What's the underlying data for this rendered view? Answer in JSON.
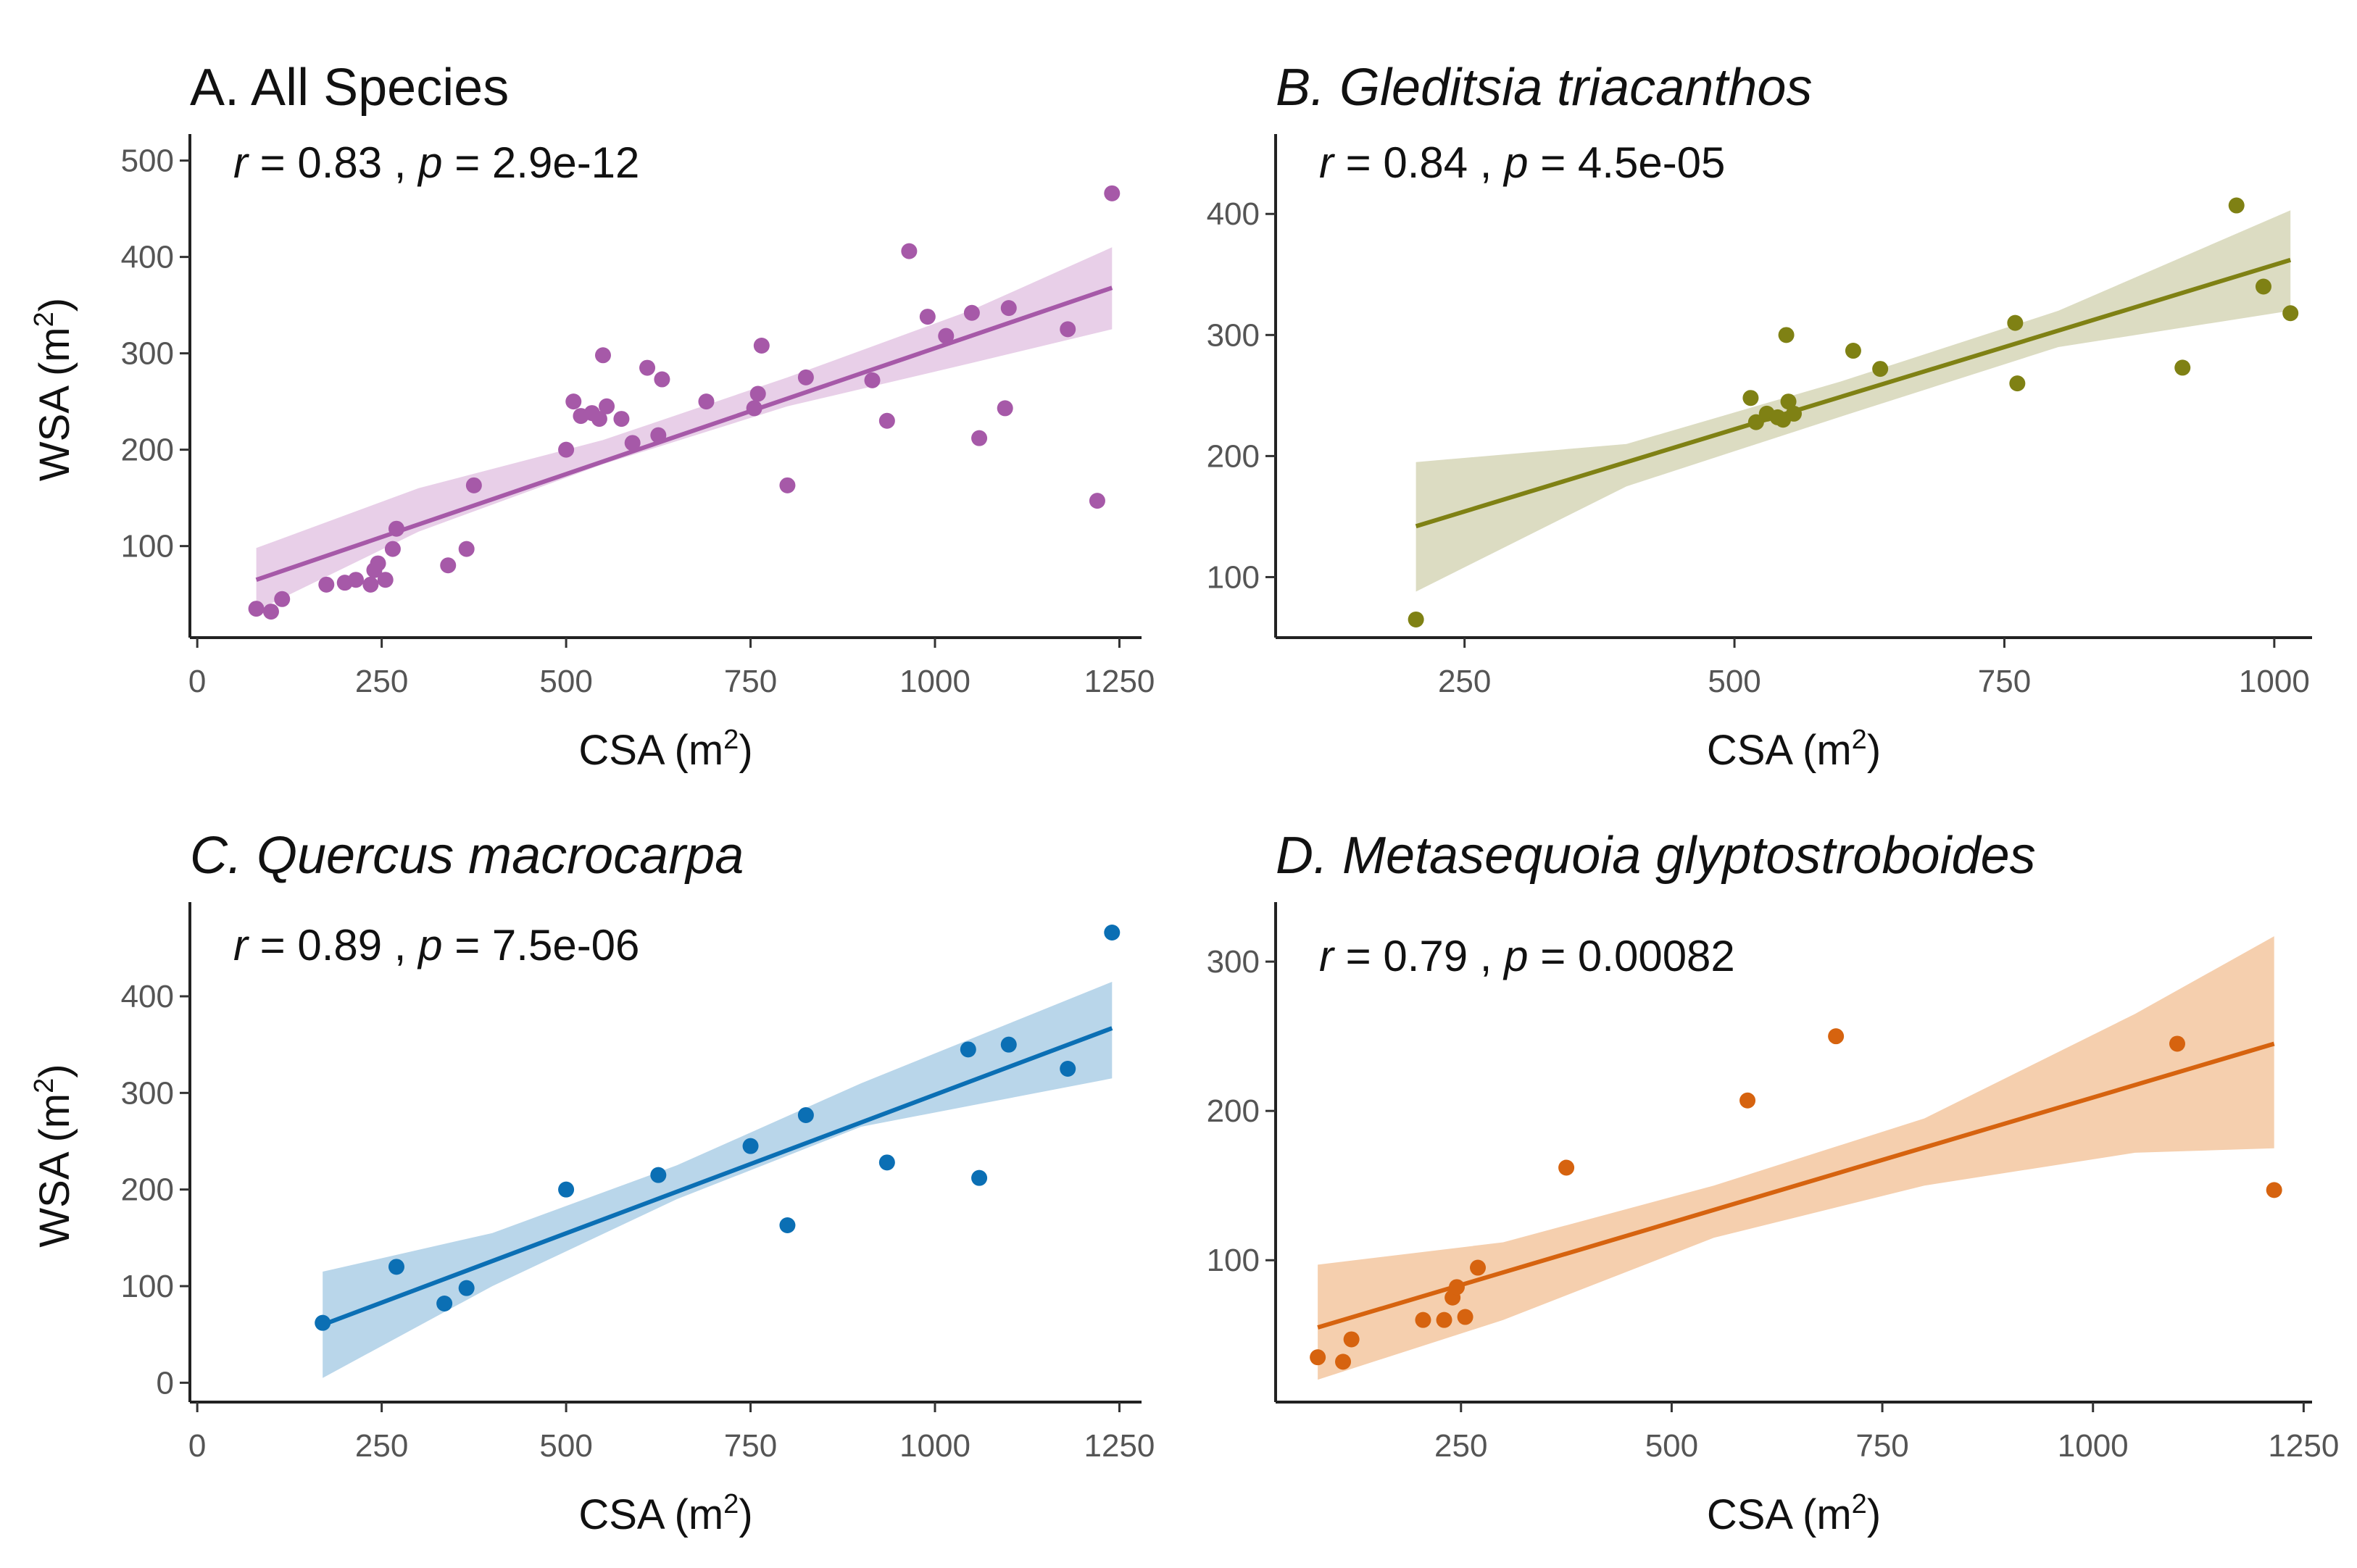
{
  "chart_data": [
    {
      "type": "scatter",
      "panel": "A",
      "title": "A. All Species",
      "title_italic": false,
      "stats": {
        "r_label": "r",
        "r": "0.83",
        "p_label": "p",
        "p": "2.9e-12"
      },
      "xlabel": "CSA (m",
      "xlabel_sup": "2",
      "xlabel_close": ")",
      "ylabel": "WSA (m",
      "ylabel_sup": "2",
      "ylabel_close": ")",
      "xlim": [
        -10,
        1280
      ],
      "ylim": [
        5,
        520
      ],
      "xticks": [
        0,
        250,
        500,
        750,
        1000,
        1250
      ],
      "yticks": [
        100,
        200,
        300,
        400,
        500
      ],
      "color": "#a659a8",
      "band_color": "#e8cfe8",
      "fit": {
        "x": [
          80,
          1240
        ],
        "y": [
          65,
          368
        ]
      },
      "band": {
        "x": [
          80,
          300,
          550,
          800,
          1050,
          1240
        ],
        "lower": [
          33,
          115,
          185,
          245,
          290,
          325
        ],
        "upper": [
          98,
          160,
          210,
          275,
          345,
          410
        ]
      },
      "points": [
        [
          80,
          35
        ],
        [
          100,
          32
        ],
        [
          115,
          45
        ],
        [
          175,
          60
        ],
        [
          200,
          62
        ],
        [
          215,
          65
        ],
        [
          235,
          60
        ],
        [
          240,
          75
        ],
        [
          245,
          82
        ],
        [
          255,
          65
        ],
        [
          265,
          97
        ],
        [
          270,
          118
        ],
        [
          340,
          80
        ],
        [
          365,
          97
        ],
        [
          375,
          163
        ],
        [
          500,
          200
        ],
        [
          510,
          250
        ],
        [
          520,
          235
        ],
        [
          535,
          238
        ],
        [
          545,
          232
        ],
        [
          550,
          298
        ],
        [
          555,
          245
        ],
        [
          575,
          232
        ],
        [
          590,
          207
        ],
        [
          610,
          285
        ],
        [
          625,
          215
        ],
        [
          630,
          273
        ],
        [
          690,
          250
        ],
        [
          755,
          243
        ],
        [
          760,
          258
        ],
        [
          765,
          308
        ],
        [
          800,
          163
        ],
        [
          825,
          275
        ],
        [
          915,
          272
        ],
        [
          935,
          230
        ],
        [
          965,
          406
        ],
        [
          990,
          338
        ],
        [
          1015,
          318
        ],
        [
          1050,
          342
        ],
        [
          1060,
          212
        ],
        [
          1095,
          243
        ],
        [
          1100,
          347
        ],
        [
          1180,
          325
        ],
        [
          1220,
          147
        ],
        [
          1240,
          466
        ]
      ]
    },
    {
      "type": "scatter",
      "panel": "B",
      "title": "B. Gleditsia triacanthos",
      "title_italic": true,
      "stats": {
        "r_label": "r",
        "r": "0.84",
        "p_label": "p",
        "p": "4.5e-05"
      },
      "xlabel": "CSA (m",
      "xlabel_sup": "2",
      "xlabel_close": ")",
      "ylabel": "",
      "ylabel_sup": "",
      "ylabel_close": "",
      "xlim": [
        75,
        1035
      ],
      "ylim": [
        50,
        460
      ],
      "xticks": [
        250,
        500,
        750,
        1000
      ],
      "yticks": [
        100,
        200,
        300,
        400
      ],
      "color": "#7f8114",
      "band_color": "#dcdcc2",
      "fit": {
        "x": [
          205,
          1015
        ],
        "y": [
          142,
          362
        ]
      },
      "band": {
        "x": [
          205,
          400,
          600,
          800,
          1015
        ],
        "lower": [
          88,
          175,
          233,
          290,
          320
        ],
        "upper": [
          195,
          210,
          262,
          320,
          403
        ]
      },
      "points": [
        [
          205,
          65
        ],
        [
          515,
          248
        ],
        [
          520,
          228
        ],
        [
          530,
          235
        ],
        [
          540,
          232
        ],
        [
          545,
          230
        ],
        [
          548,
          300
        ],
        [
          550,
          245
        ],
        [
          555,
          235
        ],
        [
          610,
          287
        ],
        [
          635,
          272
        ],
        [
          760,
          310
        ],
        [
          762,
          260
        ],
        [
          915,
          273
        ],
        [
          965,
          407
        ],
        [
          990,
          340
        ],
        [
          1015,
          318
        ]
      ]
    },
    {
      "type": "scatter",
      "panel": "C",
      "title": "C. Quercus macrocarpa",
      "title_italic": true,
      "stats": {
        "r_label": "r",
        "r": "0.89",
        "p_label": "p",
        "p": "7.5e-06"
      },
      "xlabel": "CSA (m",
      "xlabel_sup": "2",
      "xlabel_close": ")",
      "ylabel": "WSA (m",
      "ylabel_sup": "2",
      "ylabel_close": ")",
      "xlim": [
        -10,
        1280
      ],
      "ylim": [
        -20,
        490
      ],
      "xticks": [
        0,
        250,
        500,
        750,
        1000,
        1250
      ],
      "yticks": [
        0,
        100,
        200,
        300,
        400
      ],
      "color": "#0b6fb4",
      "band_color": "#b9d6ea",
      "fit": {
        "x": [
          170,
          1240
        ],
        "y": [
          60,
          367
        ]
      },
      "band": {
        "x": [
          170,
          400,
          650,
          900,
          1240
        ],
        "lower": [
          5,
          100,
          190,
          265,
          315
        ],
        "upper": [
          115,
          155,
          225,
          310,
          415
        ]
      },
      "points": [
        [
          170,
          62
        ],
        [
          270,
          120
        ],
        [
          335,
          82
        ],
        [
          365,
          98
        ],
        [
          500,
          200
        ],
        [
          625,
          215
        ],
        [
          750,
          245
        ],
        [
          800,
          163
        ],
        [
          825,
          277
        ],
        [
          935,
          228
        ],
        [
          1045,
          345
        ],
        [
          1060,
          212
        ],
        [
          1100,
          350
        ],
        [
          1180,
          325
        ],
        [
          1240,
          466
        ]
      ]
    },
    {
      "type": "scatter",
      "panel": "D",
      "title": "D. Metasequoia glyptostroboides",
      "title_italic": true,
      "stats": {
        "r_label": "r",
        "r": "0.79",
        "p_label": "p",
        "p": "0.00082"
      },
      "xlabel": "CSA (m",
      "xlabel_sup": "2",
      "xlabel_close": ")",
      "ylabel": "",
      "ylabel_sup": "",
      "ylabel_close": "",
      "xlim": [
        30,
        1260
      ],
      "ylim": [
        5,
        335
      ],
      "xticks": [
        250,
        500,
        750,
        1000,
        1250
      ],
      "yticks": [
        100,
        200,
        300
      ],
      "color": "#d6630f",
      "band_color": "#f5cfae",
      "fit": {
        "x": [
          80,
          1215
        ],
        "y": [
          55,
          245
        ]
      },
      "band": {
        "x": [
          80,
          300,
          550,
          800,
          1050,
          1215
        ],
        "lower": [
          20,
          60,
          115,
          150,
          172,
          175
        ],
        "upper": [
          97,
          112,
          150,
          195,
          265,
          317
        ]
      },
      "points": [
        [
          80,
          35
        ],
        [
          110,
          32
        ],
        [
          120,
          47
        ],
        [
          205,
          60
        ],
        [
          230,
          60
        ],
        [
          240,
          75
        ],
        [
          245,
          82
        ],
        [
          255,
          62
        ],
        [
          270,
          95
        ],
        [
          375,
          162
        ],
        [
          590,
          207
        ],
        [
          695,
          250
        ],
        [
          1100,
          245
        ],
        [
          1215,
          147
        ]
      ]
    }
  ]
}
